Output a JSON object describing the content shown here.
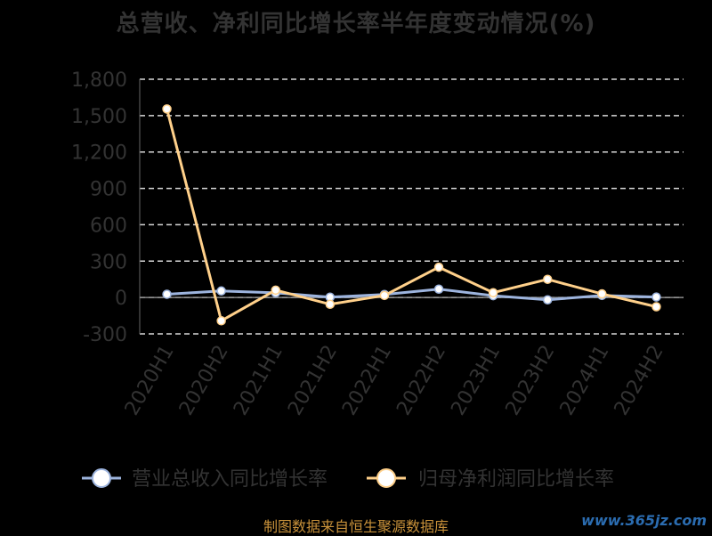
{
  "chart_data": {
    "type": "line",
    "title": "总营收、净利同比增长率半年度变动情况(%)",
    "xlabel": "",
    "ylabel": "",
    "categories": [
      "2020H1",
      "2020H2",
      "2021H1",
      "2021H2",
      "2022H1",
      "2022H2",
      "2023H1",
      "2023H2",
      "2024H1",
      "2024H2"
    ],
    "ylim": [
      -300,
      1800
    ],
    "yticks": [
      -300,
      0,
      300,
      600,
      900,
      1200,
      1500,
      1800
    ],
    "ytick_labels": [
      "-300",
      "0",
      "300",
      "600",
      "900",
      "1,200",
      "1,500",
      "1,800"
    ],
    "grid": true,
    "legend_position": "bottom",
    "series": [
      {
        "name": "营业总收入同比增长率",
        "color": "#9db4de",
        "values": [
          27,
          54,
          39,
          3,
          25,
          69,
          15,
          -19,
          17,
          4
        ]
      },
      {
        "name": "归母净利润同比增长率",
        "color": "#ffd08a",
        "values": [
          1555,
          -192,
          61,
          -56,
          17,
          250,
          40,
          150,
          30,
          -76
        ]
      }
    ],
    "source": "制图数据来自恒生聚源数据库",
    "watermark": "www.365jz.com"
  }
}
